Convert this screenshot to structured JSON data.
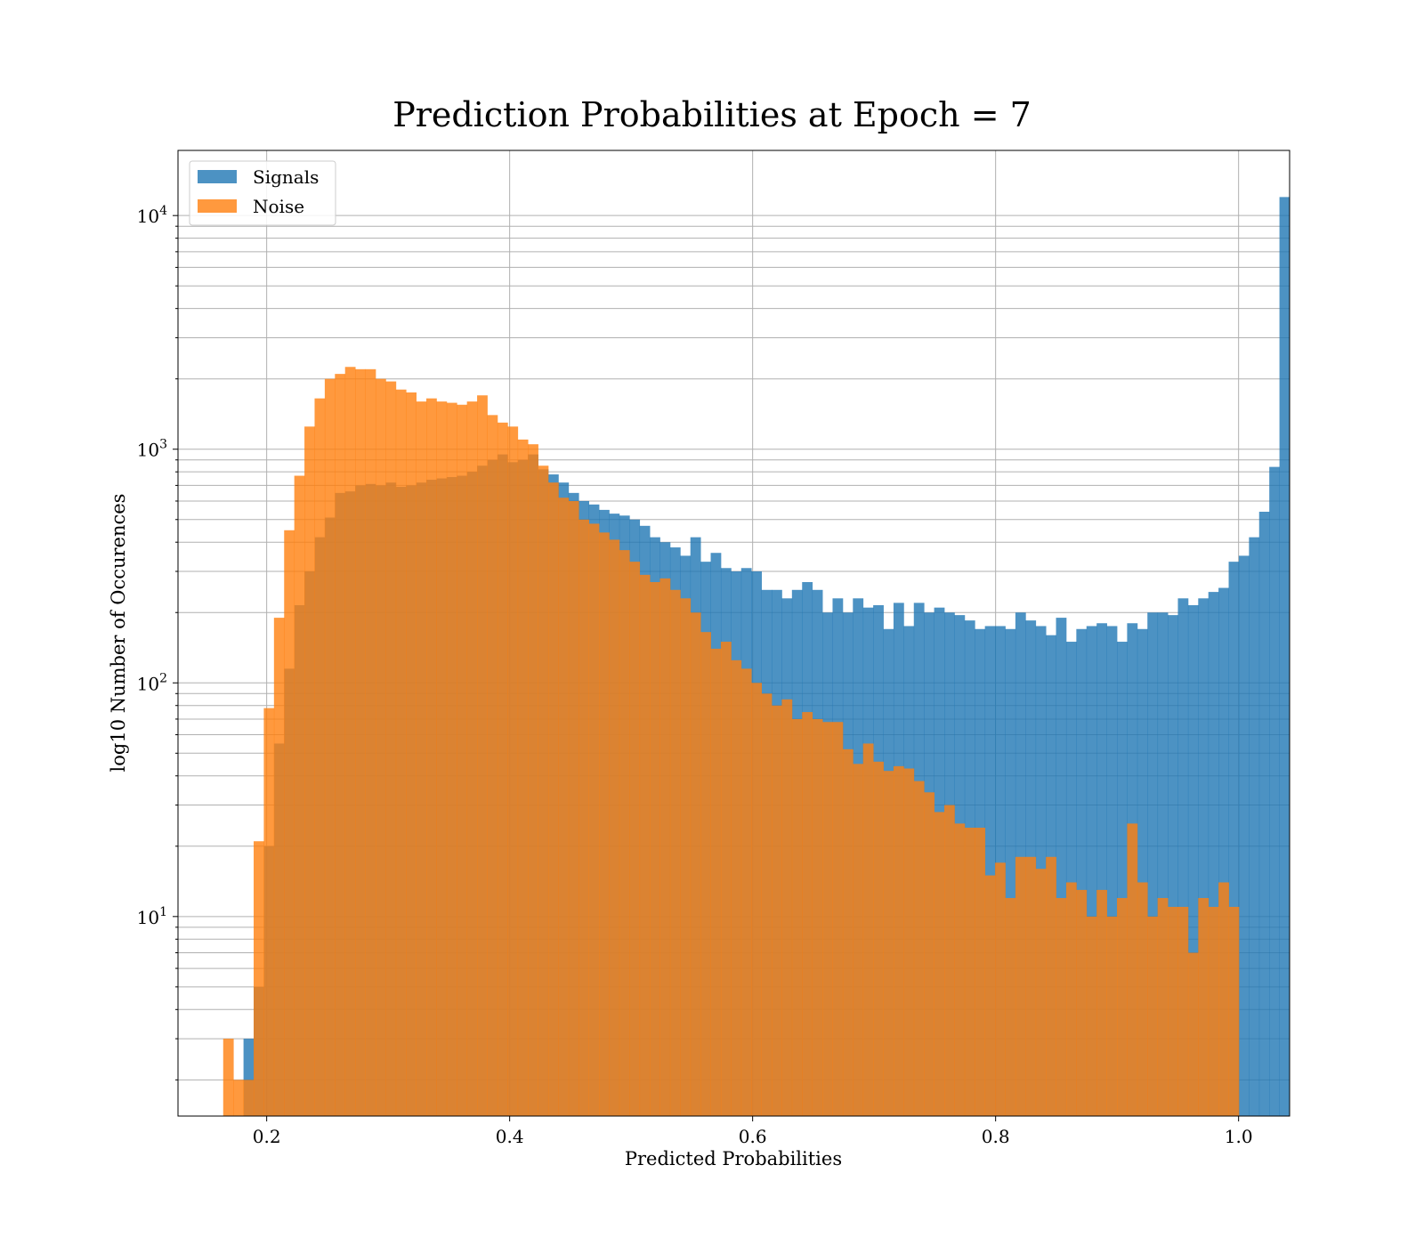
{
  "chart_data": {
    "type": "bar",
    "title": "Prediction Probabilities at Epoch = 7",
    "xlabel": "Predicted Probabilities",
    "ylabel": "log10 Number of Occurences",
    "xlim": [
      0.127,
      1.042
    ],
    "ylim": [
      1.4,
      19000
    ],
    "yscale": "log",
    "grid": true,
    "legend_position": "upper-left",
    "x_ticks": [
      0.2,
      0.4,
      0.6,
      0.8,
      1.0
    ],
    "x_tick_labels": [
      "0.2",
      "0.4",
      "0.6",
      "0.8",
      "1.0"
    ],
    "y_ticks": [
      10,
      100,
      1000,
      10000
    ],
    "y_tick_labels": [
      {
        "base": "10",
        "exp": "1"
      },
      {
        "base": "10",
        "exp": "2"
      },
      {
        "base": "10",
        "exp": "3"
      },
      {
        "base": "10",
        "exp": "4"
      }
    ],
    "bin_start": 0.1642,
    "bin_width": 0.00836,
    "series": [
      {
        "name": "Signals",
        "color": "#1f77b4",
        "opacity": 0.8,
        "values": [
          0,
          0,
          3,
          5,
          20,
          55,
          115,
          215,
          300,
          420,
          510,
          650,
          660,
          700,
          710,
          700,
          720,
          690,
          700,
          720,
          740,
          750,
          760,
          770,
          800,
          850,
          900,
          950,
          880,
          900,
          950,
          820,
          780,
          720,
          650,
          600,
          580,
          550,
          530,
          520,
          500,
          470,
          420,
          400,
          380,
          350,
          420,
          330,
          360,
          310,
          300,
          310,
          300,
          250,
          250,
          230,
          250,
          270,
          250,
          200,
          230,
          200,
          230,
          210,
          215,
          170,
          220,
          175,
          220,
          200,
          210,
          200,
          195,
          185,
          170,
          175,
          175,
          170,
          200,
          185,
          175,
          160,
          190,
          150,
          170,
          175,
          180,
          175,
          150,
          180,
          170,
          200,
          200,
          195,
          230,
          215,
          230,
          245,
          255,
          330,
          350,
          420,
          540,
          840,
          12000
        ]
      },
      {
        "name": "Noise",
        "color": "#ff7f0e",
        "opacity": 0.8,
        "values": [
          3,
          2,
          2,
          21,
          78,
          190,
          450,
          770,
          1250,
          1650,
          2000,
          2100,
          2250,
          2200,
          2200,
          2000,
          1950,
          1800,
          1750,
          1600,
          1650,
          1600,
          1580,
          1550,
          1600,
          1700,
          1400,
          1300,
          1250,
          1100,
          1050,
          850,
          720,
          620,
          600,
          500,
          480,
          440,
          410,
          370,
          330,
          290,
          270,
          280,
          250,
          230,
          200,
          165,
          140,
          150,
          125,
          115,
          100,
          90,
          80,
          85,
          70,
          75,
          70,
          68,
          68,
          52,
          45,
          55,
          46,
          42,
          44,
          43,
          38,
          34,
          28,
          30,
          25,
          24,
          24,
          15,
          17,
          12,
          18,
          18,
          16,
          18,
          12,
          14,
          13,
          10,
          13,
          10,
          12,
          25,
          14,
          10,
          12,
          11,
          11,
          7,
          12,
          11,
          14,
          11
        ]
      }
    ]
  }
}
